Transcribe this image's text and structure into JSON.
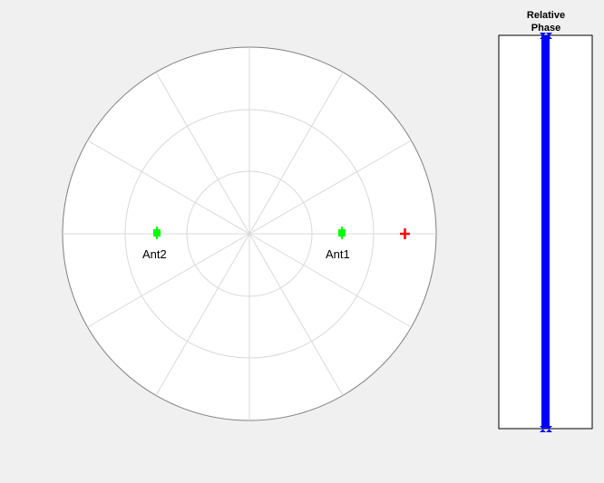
{
  "polar_plot": {
    "antennas": [
      {
        "label": "Ant1",
        "color": "#00ff00"
      },
      {
        "label": "Ant2",
        "color": "#00ff00"
      }
    ],
    "target_marker": {
      "color": "#ff0000"
    },
    "grid_color": "#d9d9d9",
    "outline_color": "#808080"
  },
  "phase_bar": {
    "title_line1": "Relative",
    "title_line2": "Phase",
    "bar_color": "#0000ff"
  }
}
